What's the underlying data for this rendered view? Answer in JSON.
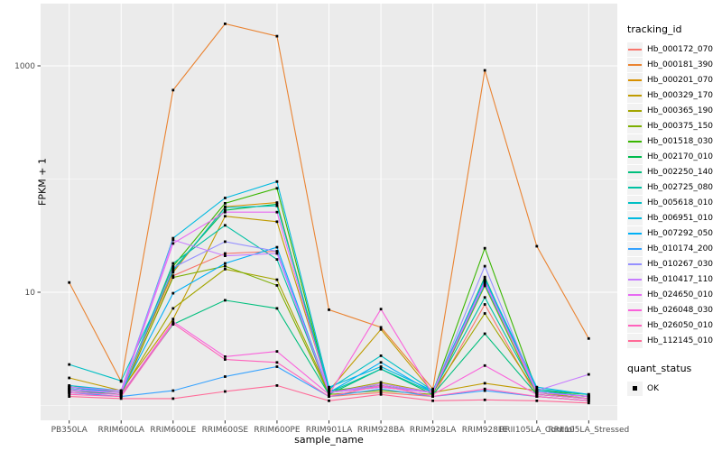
{
  "chart_data": {
    "type": "line",
    "title": "",
    "xlabel": "sample_name",
    "ylabel": "FPKM + 1",
    "y_scale": "log10",
    "grid": true,
    "legend_position": "right",
    "y_major_ticks": [
      {
        "label": "1000",
        "value": 1000
      },
      {
        "label": "10",
        "value": 10
      }
    ],
    "y_minor_values": [
      100,
      1
    ],
    "ylim": [
      0.75,
      3500
    ],
    "categories": [
      "PB350LA",
      "RRIM600LA",
      "RRIM600LE",
      "RRIM600SE",
      "RRIM600PE",
      "RRIM901LA",
      "RRIM928BA",
      "RRIM928LA",
      "RRIM928LE",
      "RRII105LA_Control",
      "RRII105LA_Stressed"
    ],
    "legend_title": "tracking_id",
    "series": [
      {
        "name": "Hb_000172_070",
        "color": "#F8766D",
        "values": [
          1.3,
          1.2,
          14.0,
          22.0,
          23.0,
          1.2,
          1.3,
          1.2,
          7.8,
          1.2,
          1.1
        ]
      },
      {
        "name": "Hb_000181_390",
        "color": "#EA8331",
        "values": [
          12.2,
          1.63,
          610,
          2350,
          1830,
          7.0,
          4.9,
          1.4,
          912,
          25.5,
          3.9
        ]
      },
      {
        "name": "Hb_000201_070",
        "color": "#D89000",
        "values": [
          1.5,
          1.3,
          15.0,
          57.0,
          62.0,
          1.3,
          1.5,
          1.3,
          12.5,
          1.3,
          1.2
        ]
      },
      {
        "name": "Hb_000329_170",
        "color": "#C09B00",
        "values": [
          1.75,
          1.35,
          5.8,
          47.0,
          42.0,
          1.35,
          4.7,
          1.3,
          1.57,
          1.35,
          1.2
        ]
      },
      {
        "name": "Hb_000365_190",
        "color": "#A3A500",
        "values": [
          1.4,
          1.3,
          7.2,
          16.0,
          12.9,
          1.3,
          1.6,
          1.3,
          6.5,
          1.3,
          1.15
        ]
      },
      {
        "name": "Hb_000375_150",
        "color": "#7CAE00",
        "values": [
          1.35,
          1.25,
          13.5,
          17.0,
          11.5,
          1.25,
          1.35,
          1.25,
          11.4,
          1.25,
          1.15
        ]
      },
      {
        "name": "Hb_001518_030",
        "color": "#39B600",
        "values": [
          1.45,
          1.3,
          17.0,
          61.0,
          83.0,
          1.35,
          1.5,
          1.3,
          24.5,
          1.35,
          1.25
        ]
      },
      {
        "name": "Hb_002170_010",
        "color": "#00BB4E",
        "values": [
          1.4,
          1.3,
          16.0,
          53.0,
          60.0,
          1.3,
          1.45,
          1.3,
          13.6,
          1.3,
          1.2
        ]
      },
      {
        "name": "Hb_002250_140",
        "color": "#00BF7D",
        "values": [
          1.35,
          1.25,
          5.2,
          8.5,
          7.2,
          1.25,
          2.1,
          1.25,
          4.3,
          1.25,
          1.15
        ]
      },
      {
        "name": "Hb_002725_080",
        "color": "#00C1A3",
        "values": [
          1.4,
          1.3,
          18.0,
          39.0,
          19.5,
          1.3,
          2.1,
          1.3,
          9.0,
          1.3,
          1.2
        ]
      },
      {
        "name": "Hb_005618_010",
        "color": "#00BFC4",
        "values": [
          2.3,
          1.65,
          15.5,
          56.0,
          58.0,
          1.4,
          2.75,
          1.35,
          12.8,
          1.4,
          1.25
        ]
      },
      {
        "name": "Hb_006951_010",
        "color": "#00BAE0",
        "values": [
          1.5,
          1.35,
          30.0,
          68.0,
          95.0,
          1.45,
          2.2,
          1.35,
          13.2,
          1.45,
          1.25
        ]
      },
      {
        "name": "Hb_007292_050",
        "color": "#00B0F6",
        "values": [
          1.45,
          1.3,
          9.8,
          18.0,
          25.0,
          1.3,
          2.4,
          1.3,
          11.8,
          1.35,
          1.2
        ]
      },
      {
        "name": "Hb_010174_200",
        "color": "#35A2FF",
        "values": [
          1.3,
          1.2,
          1.35,
          1.8,
          2.2,
          1.2,
          1.4,
          1.2,
          1.35,
          1.2,
          1.1
        ]
      },
      {
        "name": "Hb_010267_030",
        "color": "#9590FF",
        "values": [
          1.4,
          1.3,
          16.5,
          28.0,
          23.0,
          1.3,
          1.5,
          1.3,
          17.0,
          1.3,
          1.2
        ]
      },
      {
        "name": "Hb_010417_110",
        "color": "#C77CFF",
        "values": [
          1.45,
          1.35,
          29.0,
          21.0,
          22.0,
          1.3,
          1.55,
          1.3,
          12.2,
          1.35,
          1.88
        ]
      },
      {
        "name": "Hb_024650_010",
        "color": "#E76BF3",
        "values": [
          1.35,
          1.3,
          27.0,
          51.0,
          51.0,
          1.3,
          1.45,
          1.3,
          12.5,
          1.3,
          1.2
        ]
      },
      {
        "name": "Hb_026048_030",
        "color": "#FA62DB",
        "values": [
          1.3,
          1.25,
          5.5,
          2.7,
          3.0,
          1.25,
          7.1,
          1.25,
          2.25,
          1.25,
          1.15
        ]
      },
      {
        "name": "Hb_026050_010",
        "color": "#FF62BC",
        "values": [
          1.25,
          1.2,
          5.3,
          2.55,
          2.4,
          1.2,
          1.5,
          1.2,
          1.4,
          1.2,
          1.1
        ]
      },
      {
        "name": "Hb_112145_010",
        "color": "#FF6A98",
        "values": [
          1.2,
          1.15,
          1.15,
          1.33,
          1.5,
          1.1,
          1.25,
          1.1,
          1.12,
          1.1,
          1.05
        ]
      }
    ],
    "legend2": {
      "title": "quant_status",
      "items": [
        {
          "label": "OK",
          "shape": "filled-square",
          "color": "#000000"
        }
      ]
    }
  },
  "style_colors": {
    "panel_bg": "#EBEBEB",
    "grid": "#FFFFFF",
    "tick_label": "#4D4D4D",
    "tick_mark": "#333333",
    "point": "#000000"
  }
}
